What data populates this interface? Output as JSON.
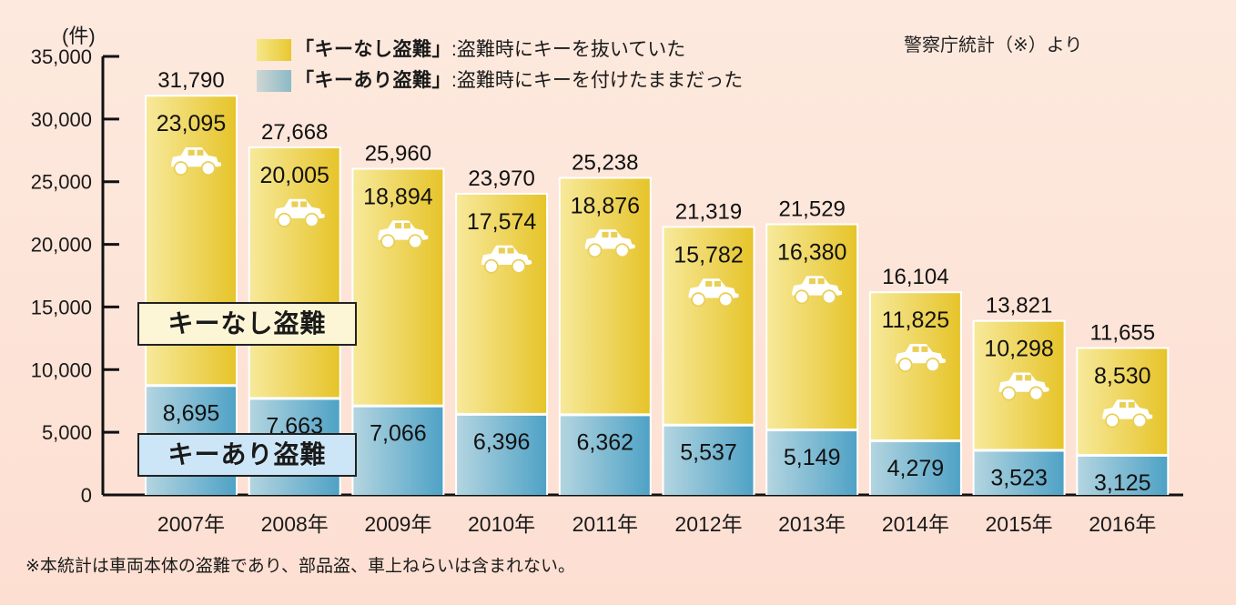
{
  "chart_data": {
    "type": "bar",
    "stacked": true,
    "title": "",
    "xlabel": "",
    "ylabel": "(件)",
    "ylim": [
      0,
      35000
    ],
    "yticks": [
      0,
      5000,
      10000,
      15000,
      20000,
      25000,
      30000,
      35000
    ],
    "ytick_labels": [
      "0",
      "5,000",
      "10,000",
      "15,000",
      "20,000",
      "25,000",
      "30,000",
      "35,000"
    ],
    "grid": false,
    "categories": [
      "2007年",
      "2008年",
      "2009年",
      "2010年",
      "2011年",
      "2012年",
      "2013年",
      "2014年",
      "2015年",
      "2016年"
    ],
    "series": [
      {
        "name": "キーあり盗難",
        "color": "#5fa9c9",
        "values": [
          8695,
          7663,
          7066,
          6396,
          6362,
          5537,
          5149,
          4279,
          3523,
          3125
        ],
        "labels": [
          "8,695",
          "7,663",
          "7,066",
          "6,396",
          "6,362",
          "5,537",
          "5,149",
          "4,279",
          "3,523",
          "3,125"
        ]
      },
      {
        "name": "キーなし盗難",
        "color": "#e9c935",
        "values": [
          23095,
          20005,
          18894,
          17574,
          18876,
          15782,
          16380,
          11825,
          10298,
          8530
        ],
        "labels": [
          "23,095",
          "20,005",
          "18,894",
          "17,574",
          "18,876",
          "15,782",
          "16,380",
          "11,825",
          "10,298",
          "8,530"
        ]
      }
    ],
    "totals": [
      31790,
      27668,
      25960,
      23970,
      25238,
      21319,
      21529,
      16104,
      13821,
      11655
    ],
    "total_labels": [
      "31,790",
      "27,668",
      "25,960",
      "23,970",
      "25,238",
      "21,319",
      "21,529",
      "16,104",
      "13,821",
      "11,655"
    ],
    "bar_icon": "car-icon",
    "legend": {
      "placement": "top",
      "entries": [
        {
          "key": "「キーなし盗難」",
          "desc": ":盗難時にキーを抜いていた",
          "swatch": "yellow"
        },
        {
          "key": "「キーあり盗難」",
          "desc": ":盗難時にキーを付けたままだった",
          "swatch": "blue"
        }
      ]
    },
    "annotations": {
      "source": "警察庁統計（※）より",
      "series_box_upper": "キーなし盗難",
      "series_box_lower": "キーあり盗難",
      "footnote": "※本統計は車両本体の盗難であり、部品盗、車上ねらいは含まれない。"
    }
  }
}
